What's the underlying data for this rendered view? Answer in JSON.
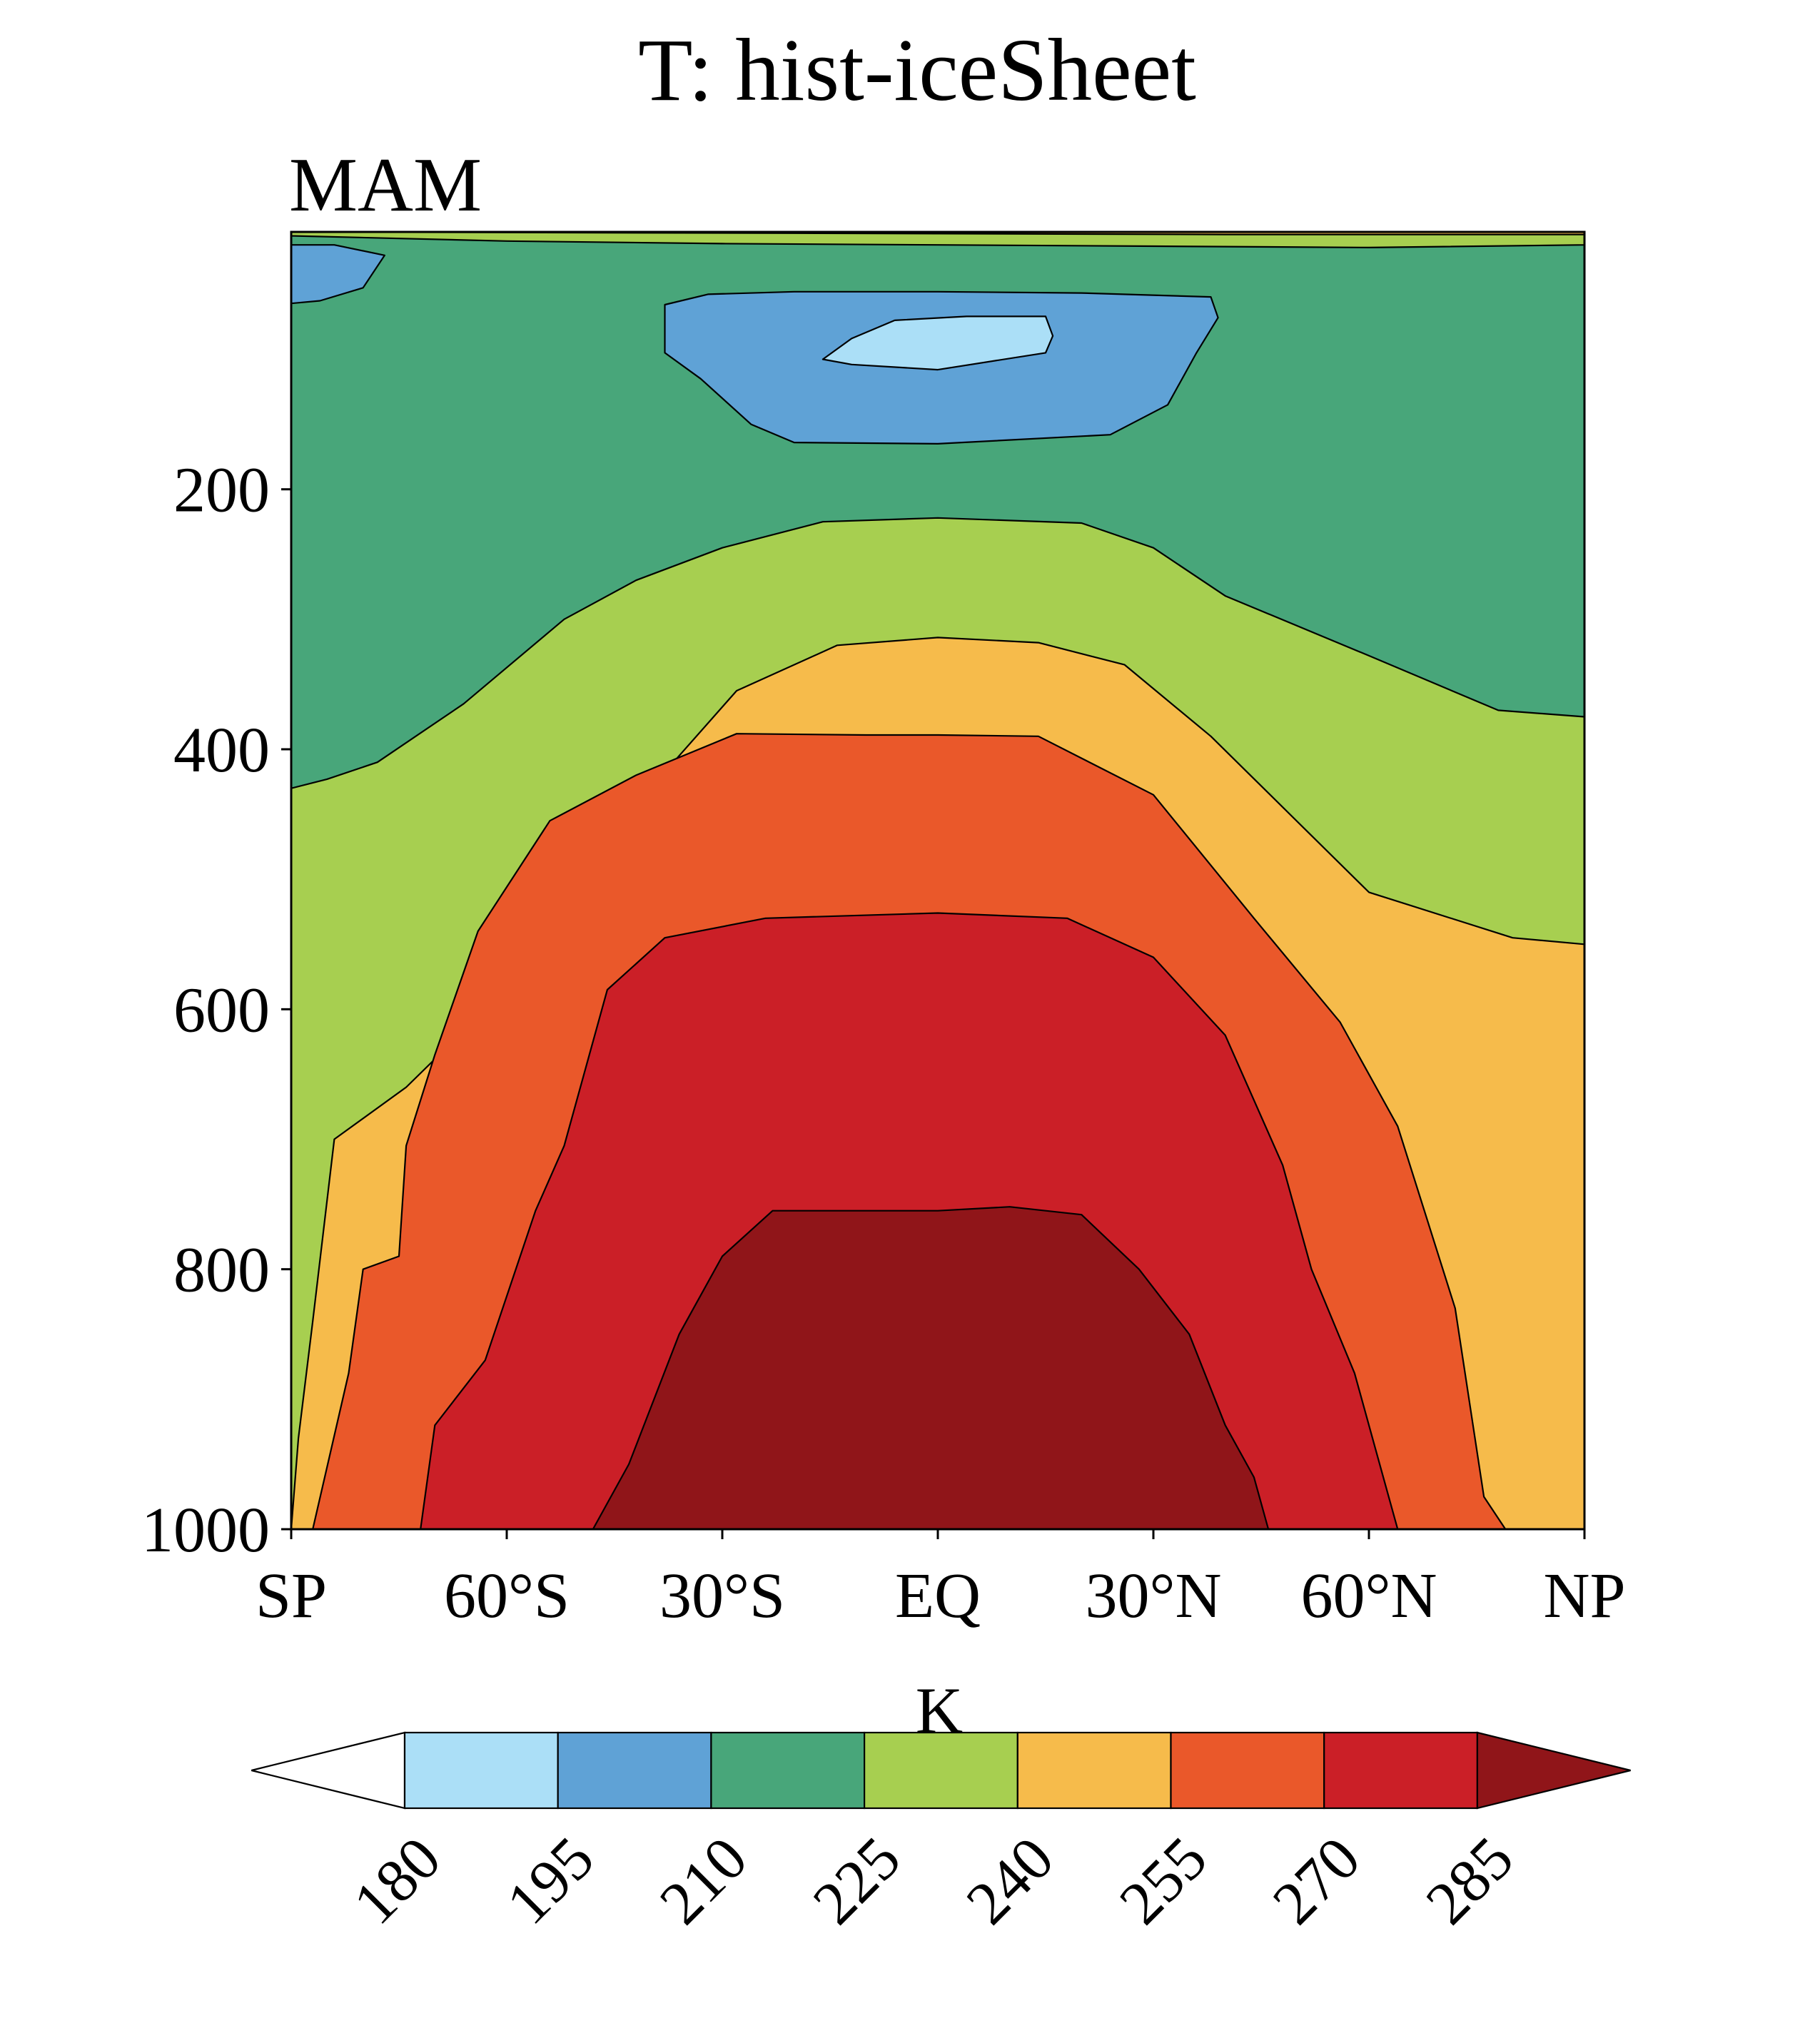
{
  "chart_data": {
    "type": "contour",
    "title": "T: hist-iceSheet",
    "season_label": "MAM",
    "variable": "T",
    "units_label": "K",
    "xlabel": "",
    "ylabel": "",
    "x_ticks": [
      {
        "label": "SP",
        "value": -90
      },
      {
        "label": "60°S",
        "value": -60
      },
      {
        "label": "30°S",
        "value": -30
      },
      {
        "label": "EQ",
        "value": 0
      },
      {
        "label": "30°N",
        "value": 30
      },
      {
        "label": "60°N",
        "value": 60
      },
      {
        "label": "NP",
        "value": 90
      }
    ],
    "xlim": [
      -90,
      90
    ],
    "y_ticks": [
      {
        "label": "200",
        "value": 200
      },
      {
        "label": "400",
        "value": 400
      },
      {
        "label": "600",
        "value": 600
      },
      {
        "label": "800",
        "value": 800
      },
      {
        "label": "1000",
        "value": 1000
      }
    ],
    "ylim": [
      1000,
      2
    ],
    "levels": [
      {
        "label": "180",
        "value": 180
      },
      {
        "label": "195",
        "value": 195
      },
      {
        "label": "210",
        "value": 210
      },
      {
        "label": "225",
        "value": 225
      },
      {
        "label": "240",
        "value": 240
      },
      {
        "label": "255",
        "value": 255
      },
      {
        "label": "270",
        "value": 270
      },
      {
        "label": "285",
        "value": 285
      }
    ],
    "colorbar": {
      "colors": [
        "#ffffff",
        "#abdff7",
        "#5fa2d6",
        "#48a67a",
        "#a7cf50",
        "#f6bb4b",
        "#ea582a",
        "#cb1f27",
        "#901519"
      ],
      "extend": "both",
      "orientation": "horizontal"
    },
    "contour_regions": [
      {
        "name": "band-210-225",
        "fill": "#48a67a",
        "points": [
          [
            -90,
            2
          ],
          [
            90,
            2
          ],
          [
            90,
            600
          ],
          [
            -90,
            600
          ]
        ]
      },
      {
        "name": "band-225-240-upper-strip",
        "fill": "#a7cf50",
        "points": [
          [
            -90,
            2
          ],
          [
            90,
            2
          ],
          [
            90,
            12
          ],
          [
            60,
            14
          ],
          [
            30,
            13
          ],
          [
            0,
            12
          ],
          [
            -30,
            11
          ],
          [
            -60,
            9
          ],
          [
            -90,
            5
          ]
        ]
      },
      {
        "name": "band-240-255-top-edge",
        "fill": "#f6bb4b",
        "points": [
          [
            -90,
            2
          ],
          [
            90,
            2
          ],
          [
            90,
            4
          ],
          [
            40,
            4
          ],
          [
            -20,
            3
          ],
          [
            -90,
            2
          ]
        ]
      },
      {
        "name": "band-195-210-sp-upper",
        "fill": "#5fa2d6",
        "points": [
          [
            -90,
            12
          ],
          [
            -84,
            12
          ],
          [
            -77,
            20
          ],
          [
            -80,
            45
          ],
          [
            -86,
            55
          ],
          [
            -90,
            57
          ]
        ]
      },
      {
        "name": "band-195-210-tropical-upper",
        "fill": "#5fa2d6",
        "points": [
          [
            -38,
            58
          ],
          [
            -32,
            50
          ],
          [
            -20,
            48
          ],
          [
            0,
            48
          ],
          [
            20,
            49
          ],
          [
            38,
            52
          ],
          [
            39,
            68
          ],
          [
            36,
            95
          ],
          [
            32,
            135
          ],
          [
            24,
            158
          ],
          [
            0,
            165
          ],
          [
            -20,
            164
          ],
          [
            -26,
            150
          ],
          [
            -33,
            115
          ],
          [
            -38,
            95
          ],
          [
            -38,
            72
          ]
        ]
      },
      {
        "name": "band-180-195-tropical-upper",
        "fill": "#abdff7",
        "points": [
          [
            -16,
            100
          ],
          [
            -12,
            84
          ],
          [
            -6,
            70
          ],
          [
            4,
            67
          ],
          [
            15,
            67
          ],
          [
            16,
            82
          ],
          [
            15,
            95
          ],
          [
            0,
            108
          ],
          [
            -12,
            104
          ]
        ]
      },
      {
        "name": "band-225-240",
        "fill": "#a7cf50",
        "points": [
          [
            -90,
            1000
          ],
          [
            -90,
            430
          ],
          [
            -85,
            423
          ],
          [
            -78,
            410
          ],
          [
            -66,
            365
          ],
          [
            -52,
            300
          ],
          [
            -42,
            270
          ],
          [
            -30,
            245
          ],
          [
            -16,
            225
          ],
          [
            0,
            222
          ],
          [
            20,
            226
          ],
          [
            30,
            245
          ],
          [
            40,
            282
          ],
          [
            60,
            328
          ],
          [
            78,
            370
          ],
          [
            90,
            375
          ],
          [
            90,
            1000
          ]
        ]
      },
      {
        "name": "band-240-255",
        "fill": "#f6bb4b",
        "points": [
          [
            -90,
            1000
          ],
          [
            -89,
            930
          ],
          [
            -87,
            840
          ],
          [
            -84,
            700
          ],
          [
            -74,
            660
          ],
          [
            -62,
            595
          ],
          [
            -50,
            510
          ],
          [
            -40,
            430
          ],
          [
            -28,
            355
          ],
          [
            -14,
            320
          ],
          [
            0,
            314
          ],
          [
            14,
            318
          ],
          [
            26,
            335
          ],
          [
            38,
            390
          ],
          [
            60,
            510
          ],
          [
            80,
            545
          ],
          [
            90,
            550
          ],
          [
            90,
            1000
          ]
        ]
      },
      {
        "name": "band-255-270",
        "fill": "#ea582a",
        "points": [
          [
            -90,
            1000
          ],
          [
            -87,
            1000
          ],
          [
            -82,
            880
          ],
          [
            -80,
            800
          ],
          [
            -75,
            790
          ],
          [
            -74,
            705
          ],
          [
            -70,
            635
          ],
          [
            -64,
            540
          ],
          [
            -54,
            455
          ],
          [
            -42,
            420
          ],
          [
            -28,
            388
          ],
          [
            -10,
            389
          ],
          [
            0,
            389
          ],
          [
            14,
            390
          ],
          [
            30,
            435
          ],
          [
            44,
            530
          ],
          [
            56,
            610
          ],
          [
            64,
            690
          ],
          [
            72,
            830
          ],
          [
            76,
            975
          ],
          [
            79,
            1000
          ],
          [
            90,
            1000
          ]
        ]
      },
      {
        "name": "band-270-285",
        "fill": "#cb1f27",
        "points": [
          [
            -72,
            1000
          ],
          [
            -70,
            920
          ],
          [
            -63,
            870
          ],
          [
            -56,
            755
          ],
          [
            -52,
            705
          ],
          [
            -46,
            585
          ],
          [
            -38,
            545
          ],
          [
            -24,
            530
          ],
          [
            0,
            526
          ],
          [
            18,
            530
          ],
          [
            30,
            560
          ],
          [
            40,
            620
          ],
          [
            48,
            720
          ],
          [
            52,
            800
          ],
          [
            58,
            880
          ],
          [
            62,
            960
          ],
          [
            64,
            1000
          ]
        ]
      },
      {
        "name": "band-285-plus",
        "fill": "#901519",
        "points": [
          [
            -48,
            1000
          ],
          [
            -43,
            950
          ],
          [
            -36,
            850
          ],
          [
            -30,
            790
          ],
          [
            -23,
            755
          ],
          [
            -12,
            755
          ],
          [
            0,
            755
          ],
          [
            10,
            752
          ],
          [
            20,
            758
          ],
          [
            28,
            800
          ],
          [
            35,
            850
          ],
          [
            40,
            920
          ],
          [
            44,
            960
          ],
          [
            46,
            1000
          ]
        ]
      }
    ]
  }
}
